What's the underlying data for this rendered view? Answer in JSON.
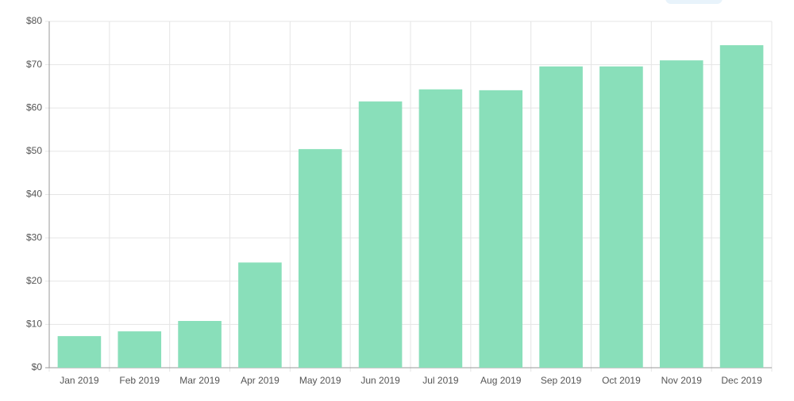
{
  "chart_data": {
    "type": "bar",
    "categories": [
      "Jan 2019",
      "Feb 2019",
      "Mar 2019",
      "Apr 2019",
      "May 2019",
      "Jun 2019",
      "Jul 2019",
      "Aug 2019",
      "Sep 2019",
      "Oct 2019",
      "Nov 2019",
      "Dec 2019"
    ],
    "values": [
      7.3,
      8.4,
      10.8,
      24.3,
      50.5,
      61.5,
      64.3,
      64.1,
      69.6,
      69.6,
      71.0,
      74.5
    ],
    "color": "#89dfba",
    "ylim": [
      0,
      80
    ],
    "yticks": [
      {
        "value": 0,
        "label": "$0"
      },
      {
        "value": 10,
        "label": "$10"
      },
      {
        "value": 20,
        "label": "$20"
      },
      {
        "value": 30,
        "label": "$30"
      },
      {
        "value": 40,
        "label": "$40"
      },
      {
        "value": 50,
        "label": "$50"
      },
      {
        "value": 60,
        "label": "$60"
      },
      {
        "value": 70,
        "label": "$70"
      },
      {
        "value": 80,
        "label": "$80"
      }
    ],
    "grid": true
  }
}
